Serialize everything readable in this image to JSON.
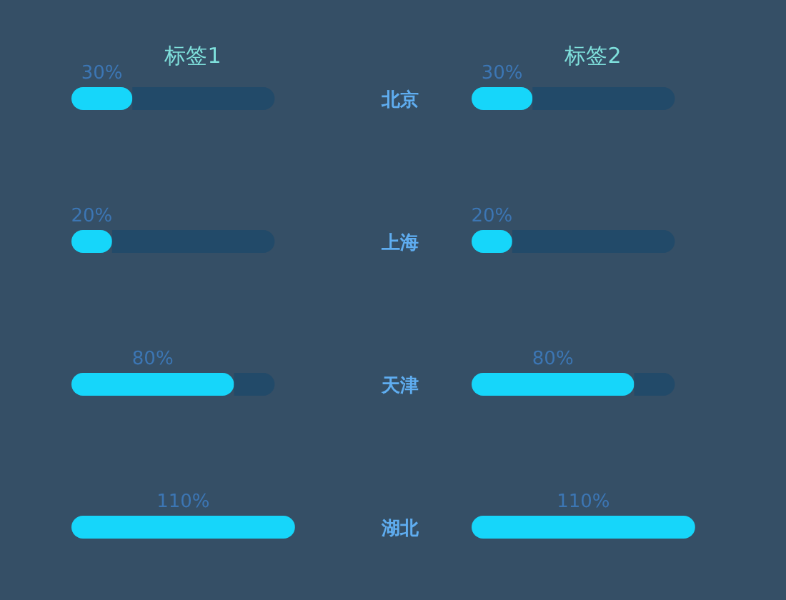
{
  "chart_data": [
    {
      "type": "bar",
      "orientation": "horizontal",
      "stacked": true,
      "title": "标签1",
      "categories": [
        null,
        null,
        null,
        null
      ],
      "series": [
        {
          "color": "#16d6fa",
          "values": [
            30,
            20,
            80,
            110
          ],
          "value_labels": [
            "30%",
            "20%",
            "80%",
            "110%"
          ]
        },
        {
          "color": "#224a69",
          "values": [
            70,
            80,
            20,
            null
          ]
        }
      ]
    },
    {
      "type": "bar",
      "orientation": "horizontal",
      "stacked": true,
      "title": "标签2",
      "categories": [
        "北京",
        "上海",
        "天津",
        "湖北"
      ],
      "series": [
        {
          "color": "#16d6fa",
          "values": [
            30,
            20,
            80,
            110
          ],
          "value_labels": [
            "30%",
            "20%",
            "80%",
            "110%"
          ]
        },
        {
          "color": "#224a69",
          "values": [
            70,
            80,
            20,
            null
          ]
        }
      ]
    }
  ]
}
